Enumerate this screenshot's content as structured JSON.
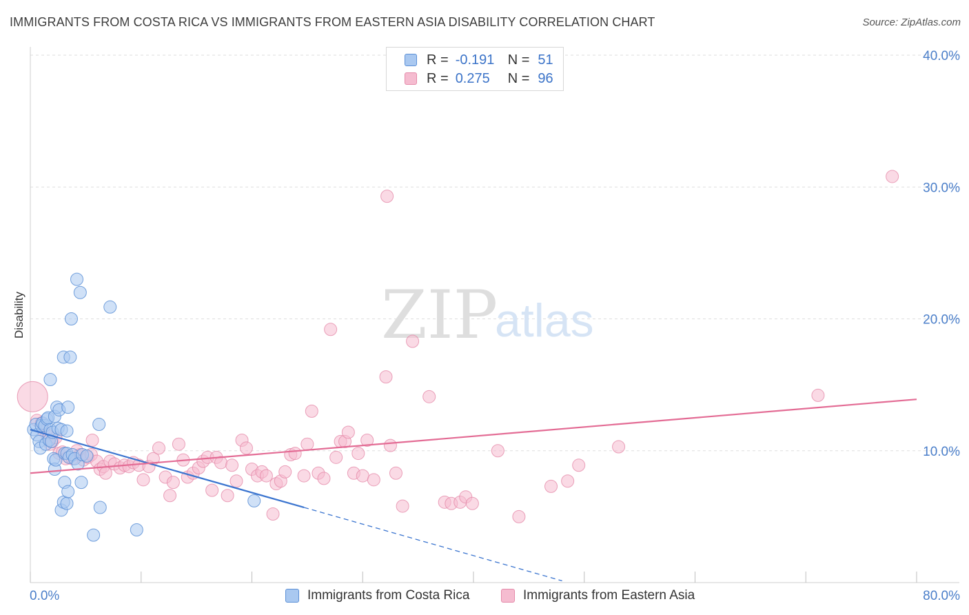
{
  "title": "IMMIGRANTS FROM COSTA RICA VS IMMIGRANTS FROM EASTERN ASIA DISABILITY CORRELATION CHART",
  "source": "Source: ZipAtlas.com",
  "watermark": {
    "zip": "ZIP",
    "atlas": "atlas"
  },
  "legend": {
    "series1": {
      "r_label": "R =",
      "r_value": "-0.191",
      "n_label": "N =",
      "n_value": "51"
    },
    "series2": {
      "r_label": "R =",
      "r_value": "0.275",
      "n_label": "N =",
      "n_value": "96"
    }
  },
  "bottom_legend": {
    "series1": "Immigrants from Costa Rica",
    "series2": "Immigrants from Eastern Asia"
  },
  "colors": {
    "blue_fill": "#a9c8f0",
    "blue_stroke": "#5b8fd6",
    "blue_line": "#3a74cf",
    "pink_fill": "#f5bcd0",
    "pink_stroke": "#e58aa9",
    "pink_line": "#e36b94",
    "tick_text": "#4a7ec9",
    "grid": "#dddddd"
  },
  "chart_data": {
    "type": "scatter",
    "ylabel": "Disability",
    "xlim": [
      0,
      80
    ],
    "ylim": [
      0,
      40
    ],
    "x_tick_labels": [
      {
        "value": 0,
        "label": "0.0%"
      },
      {
        "value": 80,
        "label": "80.0%"
      }
    ],
    "y_tick_labels": [
      {
        "value": 10,
        "label": "10.0%"
      },
      {
        "value": 20,
        "label": "20.0%"
      },
      {
        "value": 30,
        "label": "30.0%"
      },
      {
        "value": 40,
        "label": "40.0%"
      }
    ],
    "grid": true,
    "legend_position": "top-center",
    "series": [
      {
        "name": "Immigrants from Costa Rica",
        "color": "#a9c8f0",
        "points": [
          [
            0.3,
            11.6
          ],
          [
            0.5,
            12.0
          ],
          [
            0.6,
            11.2
          ],
          [
            0.8,
            10.7
          ],
          [
            0.9,
            10.2
          ],
          [
            1.0,
            11.9
          ],
          [
            1.1,
            12.1
          ],
          [
            1.3,
            11.9
          ],
          [
            1.4,
            10.5
          ],
          [
            1.5,
            12.4
          ],
          [
            1.6,
            12.5
          ],
          [
            1.7,
            10.8
          ],
          [
            1.8,
            11.6
          ],
          [
            1.8,
            15.4
          ],
          [
            1.9,
            10.7
          ],
          [
            2.0,
            11.4
          ],
          [
            2.1,
            9.4
          ],
          [
            2.2,
            8.6
          ],
          [
            2.2,
            12.6
          ],
          [
            2.3,
            9.3
          ],
          [
            2.4,
            13.3
          ],
          [
            2.5,
            11.7
          ],
          [
            2.6,
            13.1
          ],
          [
            2.8,
            5.5
          ],
          [
            2.8,
            11.6
          ],
          [
            3.0,
            6.1
          ],
          [
            3.0,
            17.1
          ],
          [
            3.1,
            7.6
          ],
          [
            3.1,
            9.8
          ],
          [
            3.3,
            6.0
          ],
          [
            3.3,
            9.8
          ],
          [
            3.3,
            11.5
          ],
          [
            3.4,
            6.9
          ],
          [
            3.4,
            13.3
          ],
          [
            3.5,
            9.5
          ],
          [
            3.6,
            17.1
          ],
          [
            3.7,
            20.0
          ],
          [
            3.8,
            9.7
          ],
          [
            4.0,
            9.4
          ],
          [
            4.2,
            23.0
          ],
          [
            4.3,
            9.0
          ],
          [
            4.5,
            22.0
          ],
          [
            4.6,
            7.6
          ],
          [
            4.7,
            9.7
          ],
          [
            5.1,
            9.6
          ],
          [
            5.7,
            3.6
          ],
          [
            6.2,
            12.0
          ],
          [
            6.3,
            5.7
          ],
          [
            7.2,
            20.9
          ],
          [
            9.6,
            4.0
          ],
          [
            20.2,
            6.2
          ]
        ]
      },
      {
        "name": "Immigrants from Eastern Asia",
        "color": "#f5bcd0",
        "points": [
          [
            0.2,
            14.1
          ],
          [
            0.6,
            12.3
          ],
          [
            1.0,
            12.1
          ],
          [
            1.2,
            11.5
          ],
          [
            1.5,
            11.2
          ],
          [
            1.8,
            10.5
          ],
          [
            2.0,
            10.7
          ],
          [
            2.3,
            11.0
          ],
          [
            2.6,
            9.8
          ],
          [
            2.9,
            9.9
          ],
          [
            3.2,
            9.4
          ],
          [
            3.5,
            9.5
          ],
          [
            3.8,
            9.4
          ],
          [
            4.2,
            10.0
          ],
          [
            4.5,
            9.7
          ],
          [
            4.8,
            9.3
          ],
          [
            5.2,
            9.5
          ],
          [
            5.5,
            9.7
          ],
          [
            5.6,
            10.8
          ],
          [
            6.0,
            9.2
          ],
          [
            6.3,
            8.6
          ],
          [
            6.6,
            8.8
          ],
          [
            6.8,
            8.3
          ],
          [
            7.2,
            9.2
          ],
          [
            7.6,
            9.0
          ],
          [
            8.1,
            8.7
          ],
          [
            8.5,
            8.9
          ],
          [
            8.9,
            8.8
          ],
          [
            9.3,
            9.1
          ],
          [
            9.8,
            8.9
          ],
          [
            10.2,
            7.8
          ],
          [
            10.7,
            8.8
          ],
          [
            11.1,
            9.4
          ],
          [
            11.6,
            10.2
          ],
          [
            12.2,
            8.0
          ],
          [
            12.6,
            6.6
          ],
          [
            12.9,
            7.6
          ],
          [
            13.4,
            10.5
          ],
          [
            13.8,
            9.3
          ],
          [
            14.2,
            8.0
          ],
          [
            14.7,
            8.3
          ],
          [
            15.2,
            8.7
          ],
          [
            15.6,
            9.2
          ],
          [
            16.0,
            9.5
          ],
          [
            16.4,
            7.0
          ],
          [
            16.8,
            9.5
          ],
          [
            17.2,
            9.1
          ],
          [
            17.8,
            6.6
          ],
          [
            18.2,
            8.9
          ],
          [
            18.6,
            7.7
          ],
          [
            19.1,
            10.8
          ],
          [
            19.5,
            10.2
          ],
          [
            20.0,
            8.6
          ],
          [
            20.5,
            8.1
          ],
          [
            20.9,
            8.4
          ],
          [
            21.3,
            8.1
          ],
          [
            21.9,
            5.2
          ],
          [
            22.2,
            7.5
          ],
          [
            22.6,
            7.7
          ],
          [
            23.0,
            8.4
          ],
          [
            23.5,
            9.7
          ],
          [
            23.9,
            9.8
          ],
          [
            24.7,
            8.1
          ],
          [
            25.0,
            10.5
          ],
          [
            25.4,
            13.0
          ],
          [
            26.0,
            8.3
          ],
          [
            26.5,
            7.9
          ],
          [
            27.1,
            19.2
          ],
          [
            27.6,
            9.5
          ],
          [
            28.0,
            10.7
          ],
          [
            28.4,
            10.7
          ],
          [
            28.7,
            11.4
          ],
          [
            29.2,
            8.3
          ],
          [
            29.6,
            9.8
          ],
          [
            30.0,
            8.1
          ],
          [
            30.4,
            10.8
          ],
          [
            31.0,
            7.8
          ],
          [
            32.1,
            15.6
          ],
          [
            32.2,
            29.3
          ],
          [
            32.5,
            10.4
          ],
          [
            33.0,
            8.3
          ],
          [
            33.6,
            5.8
          ],
          [
            34.5,
            18.3
          ],
          [
            36.0,
            14.1
          ],
          [
            37.4,
            6.1
          ],
          [
            38.0,
            6.0
          ],
          [
            38.8,
            6.1
          ],
          [
            39.3,
            6.5
          ],
          [
            39.9,
            6.0
          ],
          [
            42.2,
            10.0
          ],
          [
            44.1,
            5.0
          ],
          [
            47.0,
            7.3
          ],
          [
            48.5,
            7.7
          ],
          [
            49.5,
            8.9
          ],
          [
            53.1,
            10.3
          ],
          [
            71.1,
            14.2
          ],
          [
            77.8,
            30.8
          ]
        ]
      }
    ],
    "trend_lines": [
      {
        "series": "Immigrants from Costa Rica",
        "x_start": 0,
        "y_start": 11.6,
        "x_solid_end": 24.7,
        "x_dashed_end": 48.0
      },
      {
        "series": "Immigrants from Eastern Asia",
        "x_start": 0,
        "y_start": 8.3,
        "x_end": 80,
        "y_end": 13.9
      }
    ]
  }
}
